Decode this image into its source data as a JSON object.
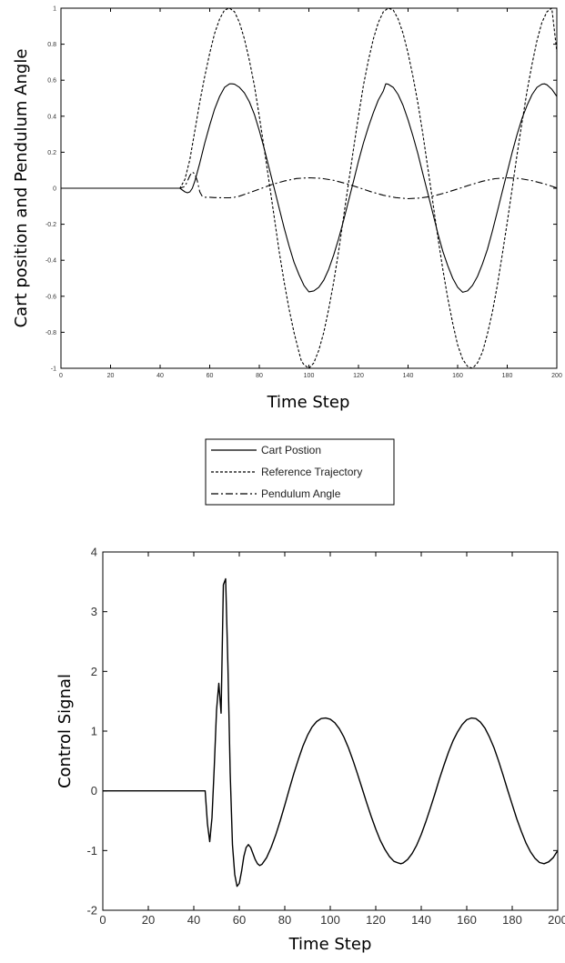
{
  "chart_data": [
    {
      "type": "line",
      "xlabel": "Time Step",
      "ylabel": "Cart position and Pendulum Angle",
      "xlim": [
        0,
        200
      ],
      "ylim": [
        -1,
        1
      ],
      "xticks": [
        "0",
        "20",
        "40",
        "60",
        "80",
        "100",
        "120",
        "140",
        "160",
        "180",
        "200"
      ],
      "yticks": [
        "1",
        "0.8",
        "0.6",
        "0.4",
        "0.2",
        "0",
        "-0.2",
        "-0.4",
        "-0.6",
        "-0.8",
        "-1"
      ],
      "grid": false,
      "legend": {
        "placement": "below-plot",
        "entries": [
          "Cart Postion",
          "Reference Trajectory",
          "Pendulum Angle"
        ]
      },
      "series": [
        {
          "name": "Cart Postion",
          "style": "solid",
          "color": "#000000",
          "x": [
            0,
            48,
            49,
            50,
            51,
            52,
            53,
            54,
            55,
            56,
            58,
            60,
            62,
            64,
            66,
            68,
            69,
            70,
            72,
            74,
            76,
            78,
            80,
            82,
            84,
            86,
            88,
            90,
            92,
            94,
            96,
            98,
            100,
            102,
            104,
            106,
            108,
            110,
            112,
            114,
            116,
            118,
            120,
            122,
            124,
            126,
            128,
            130,
            131,
            132,
            134,
            136,
            138,
            140,
            142,
            144,
            146,
            148,
            150,
            152,
            154,
            156,
            158,
            160,
            162,
            164,
            166,
            168,
            170,
            172,
            174,
            176,
            178,
            180,
            182,
            184,
            186,
            188,
            190,
            192,
            194,
            195,
            196,
            198,
            200
          ],
          "y": [
            0,
            0,
            -0.01,
            -0.02,
            -0.025,
            -0.02,
            0.0,
            0.04,
            0.09,
            0.14,
            0.25,
            0.35,
            0.44,
            0.51,
            0.56,
            0.58,
            0.58,
            0.578,
            0.56,
            0.53,
            0.48,
            0.41,
            0.32,
            0.22,
            0.11,
            0.0,
            -0.11,
            -0.22,
            -0.32,
            -0.41,
            -0.48,
            -0.54,
            -0.575,
            -0.57,
            -0.55,
            -0.51,
            -0.45,
            -0.37,
            -0.28,
            -0.18,
            -0.07,
            0.04,
            0.15,
            0.25,
            0.34,
            0.42,
            0.49,
            0.54,
            0.58,
            0.578,
            0.56,
            0.52,
            0.46,
            0.38,
            0.29,
            0.19,
            0.08,
            -0.03,
            -0.14,
            -0.25,
            -0.35,
            -0.43,
            -0.5,
            -0.55,
            -0.578,
            -0.57,
            -0.54,
            -0.49,
            -0.42,
            -0.34,
            -0.24,
            -0.13,
            -0.02,
            0.09,
            0.2,
            0.3,
            0.39,
            0.46,
            0.52,
            0.56,
            0.578,
            0.58,
            0.575,
            0.55,
            0.51
          ]
        },
        {
          "name": "Reference Trajectory",
          "style": "dashed",
          "color": "#000000",
          "x": [
            0,
            48,
            50,
            52,
            54,
            56,
            58,
            60,
            62,
            64,
            66,
            68,
            70,
            72,
            74,
            76,
            78,
            80,
            82,
            84,
            86,
            88,
            90,
            92,
            94,
            96,
            97,
            98,
            100,
            102,
            104,
            106,
            108,
            110,
            112,
            114,
            116,
            118,
            120,
            122,
            124,
            126,
            128,
            130,
            132,
            134,
            136,
            138,
            140,
            142,
            144,
            146,
            148,
            150,
            152,
            154,
            156,
            158,
            160,
            162,
            164,
            166,
            168,
            170,
            172,
            174,
            176,
            178,
            180,
            182,
            184,
            186,
            188,
            190,
            192,
            194,
            196,
            198,
            200
          ],
          "y": [
            0,
            0,
            0.05,
            0.16,
            0.32,
            0.48,
            0.62,
            0.75,
            0.86,
            0.94,
            0.99,
            1.0,
            0.98,
            0.92,
            0.83,
            0.71,
            0.57,
            0.4,
            0.22,
            0.03,
            -0.16,
            -0.35,
            -0.52,
            -0.67,
            -0.8,
            -0.91,
            -0.96,
            -0.98,
            -1.0,
            -0.97,
            -0.9,
            -0.8,
            -0.67,
            -0.52,
            -0.35,
            -0.16,
            0.03,
            0.22,
            0.4,
            0.57,
            0.71,
            0.83,
            0.92,
            0.98,
            1.0,
            0.99,
            0.94,
            0.86,
            0.75,
            0.62,
            0.47,
            0.3,
            0.11,
            -0.08,
            -0.27,
            -0.45,
            -0.61,
            -0.75,
            -0.87,
            -0.95,
            -0.99,
            -1.0,
            -0.97,
            -0.91,
            -0.81,
            -0.69,
            -0.54,
            -0.37,
            -0.19,
            0.0,
            0.19,
            0.37,
            0.54,
            0.69,
            0.82,
            0.92,
            0.98,
            1.0,
            0.76
          ]
        },
        {
          "name": "Pendulum Angle",
          "style": "dashdot",
          "color": "#000000",
          "x": [
            0,
            48,
            50,
            51,
            52,
            53,
            54,
            55,
            56,
            57,
            58,
            60,
            62,
            65,
            68,
            70,
            72,
            75,
            80,
            85,
            90,
            95,
            100,
            105,
            110,
            115,
            120,
            125,
            130,
            135,
            140,
            145,
            150,
            155,
            160,
            165,
            170,
            175,
            180,
            185,
            190,
            195,
            200
          ],
          "y": [
            0,
            0,
            0.01,
            0.04,
            0.07,
            0.09,
            0.08,
            0.04,
            -0.02,
            -0.045,
            -0.05,
            -0.05,
            -0.052,
            -0.053,
            -0.053,
            -0.05,
            -0.044,
            -0.03,
            -0.005,
            0.02,
            0.04,
            0.054,
            0.058,
            0.055,
            0.044,
            0.026,
            0.004,
            -0.019,
            -0.039,
            -0.052,
            -0.058,
            -0.054,
            -0.044,
            -0.026,
            -0.004,
            0.018,
            0.039,
            0.053,
            0.058,
            0.054,
            0.042,
            0.024,
            0.002
          ]
        }
      ]
    },
    {
      "type": "line",
      "xlabel": "Time Step",
      "ylabel": "Control Signal",
      "xlim": [
        0,
        200
      ],
      "ylim": [
        -2,
        4
      ],
      "xticks": [
        "0",
        "20",
        "40",
        "60",
        "80",
        "100",
        "120",
        "140",
        "160",
        "180",
        "200"
      ],
      "yticks": [
        "4",
        "3",
        "2",
        "1",
        "0",
        "-1",
        "-2"
      ],
      "grid": false,
      "series": [
        {
          "name": "",
          "style": "solid",
          "color": "#000000",
          "x": [
            0,
            45,
            46,
            47,
            48,
            49,
            50,
            51,
            52,
            53,
            54,
            55,
            56,
            57,
            58,
            59,
            60,
            61,
            62,
            63,
            64,
            65,
            66,
            67,
            68,
            69,
            70,
            72,
            74,
            76,
            78,
            80,
            82,
            84,
            86,
            88,
            90,
            92,
            94,
            96,
            98,
            100,
            102,
            104,
            106,
            108,
            110,
            112,
            114,
            116,
            118,
            120,
            122,
            124,
            126,
            128,
            130,
            131,
            132,
            134,
            136,
            138,
            140,
            142,
            144,
            146,
            148,
            150,
            152,
            154,
            156,
            158,
            160,
            162,
            164,
            166,
            168,
            170,
            172,
            174,
            176,
            178,
            180,
            182,
            184,
            186,
            188,
            190,
            192,
            194,
            196,
            198,
            200
          ],
          "y": [
            0,
            0,
            -0.55,
            -0.85,
            -0.45,
            0.4,
            1.35,
            1.8,
            1.3,
            3.45,
            3.55,
            2.1,
            0.3,
            -0.9,
            -1.4,
            -1.6,
            -1.55,
            -1.35,
            -1.1,
            -0.95,
            -0.9,
            -0.95,
            -1.05,
            -1.15,
            -1.22,
            -1.25,
            -1.23,
            -1.12,
            -0.95,
            -0.74,
            -0.5,
            -0.24,
            0.03,
            0.29,
            0.53,
            0.75,
            0.93,
            1.07,
            1.16,
            1.21,
            1.22,
            1.2,
            1.14,
            1.04,
            0.9,
            0.72,
            0.51,
            0.28,
            0.04,
            -0.2,
            -0.43,
            -0.64,
            -0.83,
            -0.98,
            -1.1,
            -1.18,
            -1.21,
            -1.22,
            -1.21,
            -1.15,
            -1.05,
            -0.91,
            -0.73,
            -0.52,
            -0.29,
            -0.05,
            0.2,
            0.43,
            0.65,
            0.84,
            0.99,
            1.11,
            1.19,
            1.22,
            1.21,
            1.15,
            1.05,
            0.9,
            0.72,
            0.5,
            0.26,
            0.01,
            -0.23,
            -0.47,
            -0.68,
            -0.87,
            -1.02,
            -1.13,
            -1.2,
            -1.22,
            -1.19,
            -1.12,
            -1.0
          ]
        }
      ]
    }
  ]
}
